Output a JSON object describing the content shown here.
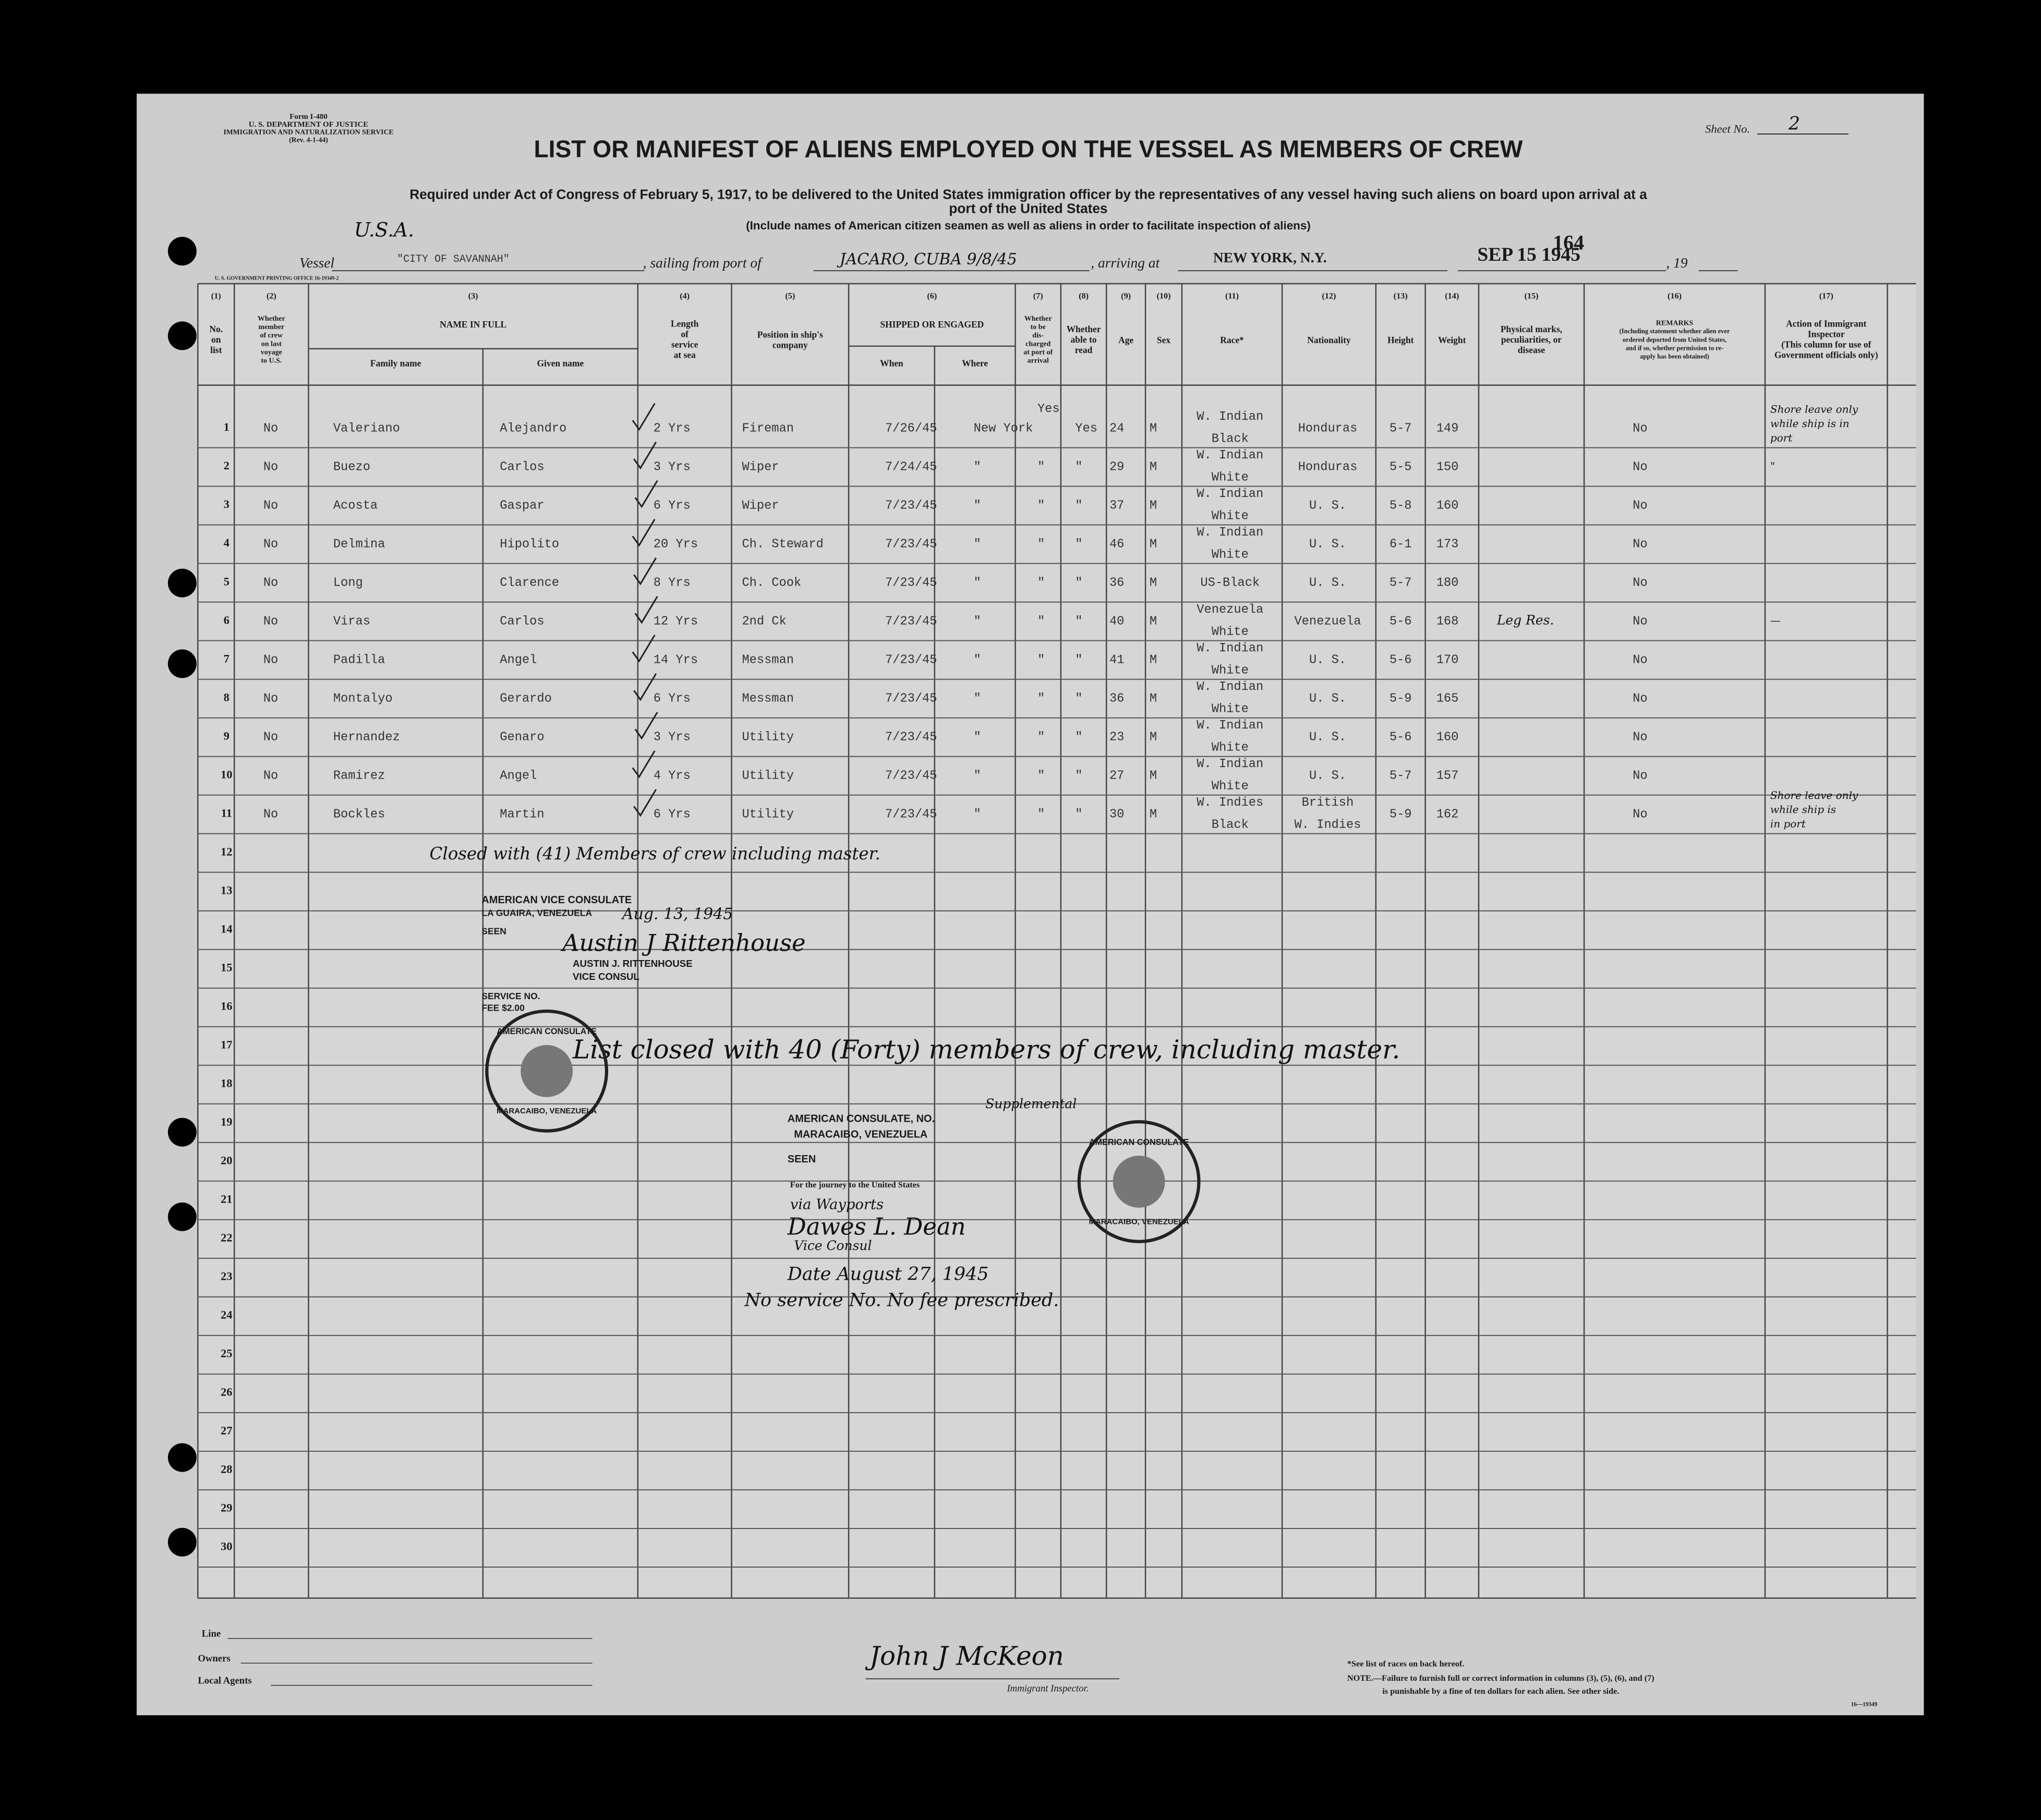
{
  "form": {
    "id": "Form I-480",
    "dept": "U. S. DEPARTMENT OF JUSTICE",
    "service": "IMMIGRATION AND NATURALIZATION SERVICE",
    "rev": "(Rev. 4-1-44)"
  },
  "sheet": {
    "label": "Sheet No.",
    "number": "2"
  },
  "title": "LIST OR MANIFEST OF ALIENS EMPLOYED ON THE VESSEL AS MEMBERS OF CREW",
  "subtitle": [
    "Required under Act of Congress of February 5, 1917, to be delivered to the United States immigration officer by the representatives of any vessel having such aliens on board upon arrival at a",
    "port of the United States",
    "(Include names of American citizen seamen as well as aliens in order to facilitate inspection of aliens)"
  ],
  "page_number": "164",
  "vessel": {
    "flag": "U.S.A.",
    "label": "Vessel",
    "name": "\"CITY OF SAVANNAH\"",
    "from_label": ", sailing from port of",
    "from": "JACARO, CUBA 9/8/45",
    "arriving_label": ", arriving at",
    "arriving": "NEW YORK, N.Y.",
    "date": "SEP 15 1945",
    "year_label": ", 19"
  },
  "printing_office": "U. S. GOVERNMENT PRINTING OFFICE 16-19349-2",
  "columns": [
    {
      "num": "(1)",
      "label": [
        "No.",
        "on",
        "list"
      ]
    },
    {
      "num": "(2)",
      "label": [
        "Whether",
        "member",
        "of crew",
        "on last",
        "voyage",
        "to U.S."
      ]
    },
    {
      "num": "(3)",
      "label": [
        "NAME IN FULL"
      ],
      "sub": [
        "Family name",
        "Given name"
      ]
    },
    {
      "num": "(4)",
      "label": [
        "Length",
        "of",
        "service",
        "at sea"
      ]
    },
    {
      "num": "(5)",
      "label": [
        "Position in ship's",
        "company"
      ]
    },
    {
      "num": "(6)",
      "label": [
        "SHIPPED OR ENGAGED"
      ],
      "sub": [
        "When",
        "Where"
      ]
    },
    {
      "num": "(7)",
      "label": [
        "Whether",
        "to be",
        "dis-",
        "charged",
        "at port of",
        "arrival"
      ]
    },
    {
      "num": "(8)",
      "label": [
        "Whether",
        "able to",
        "read"
      ]
    },
    {
      "num": "(9)",
      "label": [
        "Age"
      ]
    },
    {
      "num": "(10)",
      "label": [
        "Sex"
      ]
    },
    {
      "num": "(11)",
      "label": [
        "Race*"
      ]
    },
    {
      "num": "(12)",
      "label": [
        "Nationality"
      ]
    },
    {
      "num": "(13)",
      "label": [
        "Height"
      ]
    },
    {
      "num": "(14)",
      "label": [
        "Weight"
      ]
    },
    {
      "num": "(15)",
      "label": [
        "Physical marks,",
        "peculiarities, or",
        "disease"
      ]
    },
    {
      "num": "(16)",
      "label": [
        "REMARKS",
        "(Including statement whether alien ever",
        "ordered deported from United States,",
        "and if so, whether permission to re-",
        "apply has been obtained)"
      ]
    },
    {
      "num": "(17)",
      "label": [
        "Action of Immigrant",
        "Inspector",
        "(This column for use of",
        "Government officials only)"
      ]
    }
  ],
  "line_numbers": [
    1,
    2,
    3,
    4,
    5,
    6,
    7,
    8,
    9,
    10,
    11,
    12,
    13,
    14,
    15,
    16,
    17,
    18,
    19,
    20,
    21,
    22,
    23,
    24,
    25,
    26,
    27,
    28,
    29,
    30
  ],
  "table": {
    "rows": [
      [
        "No",
        "Valeriano",
        "Alejandro",
        "2 Yrs",
        "Fireman",
        "7/26/45",
        "New York",
        "Yes",
        "Yes",
        "24",
        "M",
        [
          "W. Indian",
          "Black"
        ],
        "Honduras",
        "5-7",
        "149",
        "",
        "No",
        [
          "Shore leave only",
          "while ship is in",
          "port"
        ]
      ],
      [
        "No",
        "Buezo",
        "Carlos",
        "3 Yrs",
        "Wiper",
        "7/24/45",
        "\"",
        "\"",
        "\"",
        "29",
        "M",
        [
          "W. Indian",
          "White"
        ],
        "Honduras",
        "5-5",
        "150",
        "",
        "No",
        [
          "\""
        ]
      ],
      [
        "No",
        "Acosta",
        "Gaspar",
        "6 Yrs",
        "Wiper",
        "7/23/45",
        "\"",
        "\"",
        "\"",
        "37",
        "M",
        [
          "W. Indian",
          "White"
        ],
        "U. S.",
        "5-8",
        "160",
        "",
        "No",
        []
      ],
      [
        "No",
        "Delmina",
        "Hipolito",
        "20 Yrs",
        "Ch. Steward",
        "7/23/45",
        "\"",
        "\"",
        "\"",
        "46",
        "M",
        [
          "W. Indian",
          "White"
        ],
        "U. S.",
        "6-1",
        "173",
        "",
        "No",
        []
      ],
      [
        "No",
        "Long",
        "Clarence",
        "8 Yrs",
        "Ch. Cook",
        "7/23/45",
        "\"",
        "\"",
        "\"",
        "36",
        "M",
        [
          "US-Black"
        ],
        "U. S.",
        "5-7",
        "180",
        "",
        "No",
        []
      ],
      [
        "No",
        "Viras",
        "Carlos",
        "12 Yrs",
        "2nd Ck",
        "7/23/45",
        "\"",
        "\"",
        "\"",
        "40",
        "M",
        [
          "Venezuela",
          "White"
        ],
        "Venezuela",
        "5-6",
        "168",
        "Leg Res.",
        "No",
        [
          "—"
        ]
      ],
      [
        "No",
        "Padilla",
        "Angel",
        "14 Yrs",
        "Messman",
        "7/23/45",
        "\"",
        "\"",
        "\"",
        "41",
        "M",
        [
          "W. Indian",
          "White"
        ],
        "U. S.",
        "5-6",
        "170",
        "",
        "No",
        []
      ],
      [
        "No",
        "Montalyo",
        "Gerardo",
        "6 Yrs",
        "Messman",
        "7/23/45",
        "\"",
        "\"",
        "\"",
        "36",
        "M",
        [
          "W. Indian",
          "White"
        ],
        "U. S.",
        "5-9",
        "165",
        "",
        "No",
        []
      ],
      [
        "No",
        "Hernandez",
        "Genaro",
        "3 Yrs",
        "Utility",
        "7/23/45",
        "\"",
        "\"",
        "\"",
        "23",
        "M",
        [
          "W. Indian",
          "White"
        ],
        "U. S.",
        "5-6",
        "160",
        "",
        "No",
        []
      ],
      [
        "No",
        "Ramirez",
        "Angel",
        "4 Yrs",
        "Utility",
        "7/23/45",
        "\"",
        "\"",
        "\"",
        "27",
        "M",
        [
          "W. Indian",
          "White"
        ],
        "U. S.",
        "5-7",
        "157",
        "",
        "No",
        []
      ],
      [
        "No",
        "Bockles",
        "Martin",
        "6 Yrs",
        "Utility",
        "7/23/45",
        "\"",
        "\"",
        "\"",
        "30",
        "M",
        [
          "W. Indies",
          "Black"
        ],
        [
          "British",
          "W. Indies"
        ],
        "5-9",
        "162",
        "",
        "No",
        [
          "Shore leave only",
          "while ship is",
          "in port"
        ]
      ]
    ]
  },
  "annotations": {
    "closed_first": "Closed with (41) Members of crew including master.",
    "consulate_1": {
      "office": "AMERICAN VICE CONSULATE",
      "place": "LA GUAIRA, VENEZUELA",
      "seen": "SEEN",
      "date": "Aug. 13, 1945",
      "signature": "Austin J Rittenhouse",
      "name": "AUSTIN J. RITTENHOUSE",
      "title": "VICE CONSUL",
      "service": "SERVICE NO.",
      "fee": "FEE $2.00"
    },
    "closed_final": "List closed with 40 (Forty) members of crew, including master.",
    "stamp": {
      "top": "AMERICAN CONSULATE",
      "bottom": "MARACAIBO, VENEZUELA"
    },
    "consulate_2": {
      "office": "AMERICAN CONSULATE, NO.",
      "supplemental": "Supplemental",
      "place": "MARACAIBO, VENEZUELA",
      "seen": "SEEN",
      "journey": "For the journey to the United States",
      "via": "via Wayports",
      "signature": "Dawes L. Dean",
      "title": "Vice Consul",
      "date": "Date August 27, 1945",
      "fee_note": "No service No. No fee prescribed."
    }
  },
  "footer": {
    "line": "Line",
    "owners": "Owners",
    "agents": "Local Agents",
    "inspector_signature": "John J McKeon",
    "inspector_title": "Immigrant Inspector.",
    "note_races": "*See list of races on back hereof.",
    "note_1": "NOTE.—Failure to furnish full or correct information in columns (3), (5), (6), and (7)",
    "note_2": "is punishable by a fine of ten dollars for each alien. See other side.",
    "form_code": "16—19349"
  }
}
